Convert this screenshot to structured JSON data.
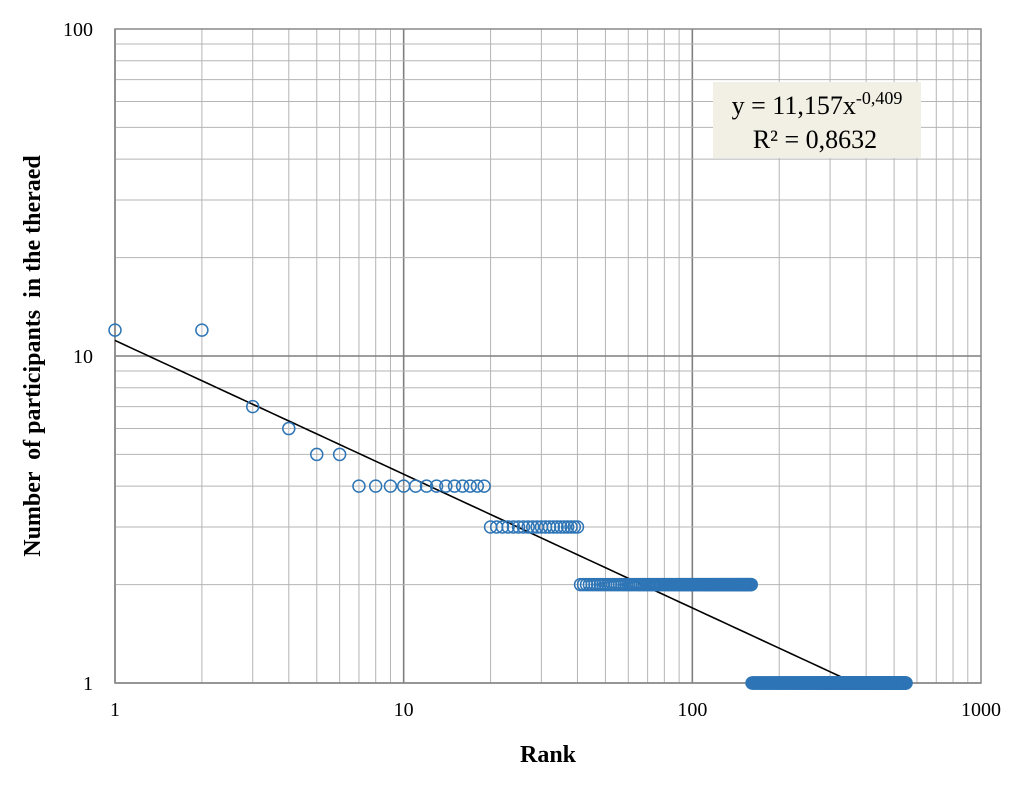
{
  "chart_data": {
    "type": "scatter",
    "title": "",
    "xlabel": "Rank",
    "ylabel": "Number  of participants  in the theraed",
    "x_scale": "log",
    "y_scale": "log",
    "xlim": [
      1,
      1000
    ],
    "ylim": [
      1,
      100
    ],
    "grid": true,
    "x_tick_labels": [
      "1",
      "10",
      "100",
      "1000"
    ],
    "y_tick_labels": [
      "1",
      "10",
      "100"
    ],
    "marker_color": "#2E75B6",
    "trendline_color": "#000000",
    "series": [
      {
        "groups": [
          {
            "y": 12,
            "x_from": 1,
            "x_to": 2
          },
          {
            "y": 7,
            "x_from": 3,
            "x_to": 3
          },
          {
            "y": 6,
            "x_from": 4,
            "x_to": 4
          },
          {
            "y": 5,
            "x_from": 5,
            "x_to": 6
          },
          {
            "y": 4,
            "x_from": 7,
            "x_to": 19
          },
          {
            "y": 3,
            "x_from": 20,
            "x_to": 40
          },
          {
            "y": 2,
            "x_from": 41,
            "x_to": 160
          },
          {
            "y": 1,
            "x_from": 161,
            "x_to": 550
          }
        ]
      }
    ],
    "trendline": {
      "type": "power",
      "a": 11.157,
      "b": -0.409,
      "x_range": [
        1,
        370
      ]
    },
    "annotation": {
      "equation_prefix": "y = 11,157x",
      "equation_exponent": "-0,409",
      "r_squared": "R² = 0,8632",
      "background": "#F2EFE4"
    }
  }
}
